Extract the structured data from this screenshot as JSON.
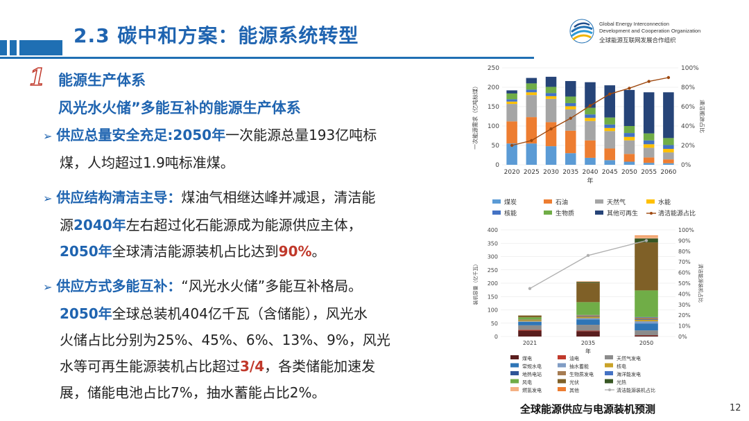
{
  "header": {
    "title": "2.3 碳中和方案：能源系统转型",
    "org_en_1": "Global Energy Interconnection",
    "org_en_2": "Development and Cooperation Organization",
    "org_cn": "全球能源互联网发展合作组织"
  },
  "section": {
    "number": "1",
    "h1": "能源生产体系",
    "h2": "风光水火储”多能互补的能源生产体系"
  },
  "bullets": {
    "b1": {
      "lead": "供应总量安全充足:2050年",
      "t1": "一次能源总量193亿吨标",
      "t2": "煤，人均超过1.9吨标准煤。"
    },
    "b2": {
      "lead": "供应结构清洁主导：",
      "t1": "煤油气相继达峰并减退，清洁能",
      "t2a": "源",
      "t2b": "2040年",
      "t2c": "左右超过化石能源成为能源供应主体，",
      "t3a": "2050年",
      "t3b": "全球清洁能源装机占比达到",
      "t3c": "90%",
      "t3d": "。"
    },
    "b3": {
      "lead": "供应方式多能互补：",
      "t1": "“风光水火储”多能互补格局。",
      "t2a": "2050年",
      "t2b": "全球总装机404亿千瓦（含储能），风光水",
      "t3": "火储占比分别为25%、45%、6%、13%、9%，风光",
      "t4a": "水等可再生能源装机占比超过",
      "t4b": "3/4",
      "t4c": "，各类储能加速发",
      "t5": "展，储能电池占比7%，抽水蓄能占比2%。"
    }
  },
  "caption": "全球能源供应与电源装机预测",
  "page_number": "12",
  "chart_data": [
    {
      "type": "bar",
      "stacked": true,
      "categories": [
        "2020",
        "2025",
        "2030",
        "2035",
        "2040",
        "2045",
        "2050",
        "2055",
        "2060"
      ],
      "xlabel": "年",
      "ylabel": "一次能源需求（亿吨标煤）",
      "ylabel_right": "清洁能源占比",
      "ylim": [
        0,
        250
      ],
      "yticks": [
        "0",
        "50",
        "100",
        "150",
        "200",
        "250"
      ],
      "ylim_right": [
        0,
        100
      ],
      "yticks_right": [
        "0%",
        "20%",
        "40%",
        "60%",
        "80%",
        "100%"
      ],
      "series": [
        {
          "name": "煤炭",
          "color": "#5b9bd5",
          "values": [
            55,
            55,
            48,
            30,
            18,
            12,
            8,
            5,
            4
          ]
        },
        {
          "name": "石油",
          "color": "#ed7d31",
          "values": [
            57,
            68,
            62,
            58,
            45,
            30,
            20,
            14,
            10
          ]
        },
        {
          "name": "天然气",
          "color": "#a5a5a5",
          "values": [
            45,
            57,
            60,
            55,
            50,
            45,
            35,
            25,
            18
          ]
        },
        {
          "name": "水能",
          "color": "#ffc000",
          "values": [
            6,
            7,
            7,
            8,
            8,
            8,
            9,
            9,
            9
          ]
        },
        {
          "name": "核能",
          "color": "#4472c4",
          "values": [
            6,
            7,
            8,
            8,
            9,
            9,
            10,
            10,
            10
          ]
        },
        {
          "name": "生物质",
          "color": "#70ad47",
          "values": [
            15,
            16,
            16,
            17,
            17,
            18,
            18,
            18,
            18
          ]
        },
        {
          "name": "其他可再生",
          "color": "#264478",
          "values": [
            8,
            14,
            26,
            40,
            66,
            83,
            93,
            106,
            118
          ]
        }
      ],
      "line": {
        "name": "清洁能源占比",
        "color": "#9e480e",
        "values": [
          20,
          25,
          37,
          48,
          61,
          73,
          79,
          86,
          90
        ]
      }
    },
    {
      "type": "bar",
      "stacked": true,
      "categories": [
        "2021",
        "2035",
        "2050"
      ],
      "xlabel": "年",
      "ylabel": "装机容量（亿千瓦）",
      "ylabel_right": "清洁能源装机占比",
      "ylim": [
        0,
        400
      ],
      "yticks": [
        "0",
        "50",
        "100",
        "150",
        "200",
        "250",
        "300",
        "350",
        "400"
      ],
      "ylim_right": [
        0,
        100
      ],
      "yticks_right": [
        "0%",
        "10%",
        "20%",
        "30%",
        "40%",
        "50%",
        "60%",
        "70%",
        "80%",
        "90%",
        "100%"
      ],
      "series": [
        {
          "name": "煤电",
          "color": "#5a1e1e",
          "values": [
            22,
            20,
            4
          ]
        },
        {
          "name": "油电",
          "color": "#c0392b",
          "values": [
            3,
            2,
            1
          ]
        },
        {
          "name": "天然气发电",
          "color": "#8c8c8c",
          "values": [
            17,
            22,
            18
          ]
        },
        {
          "name": "常规水电",
          "color": "#2e75b6",
          "values": [
            13,
            20,
            26
          ]
        },
        {
          "name": "抽水蓄能",
          "color": "#7f9cc4",
          "values": [
            2,
            5,
            8
          ]
        },
        {
          "name": "核电",
          "color": "#c9a227",
          "values": [
            4,
            5,
            6
          ]
        },
        {
          "name": "地热电站",
          "color": "#2f5597",
          "values": [
            1,
            2,
            2
          ]
        },
        {
          "name": "生物质发电",
          "color": "#a67c52",
          "values": [
            2,
            4,
            6
          ]
        },
        {
          "name": "海洋能发电",
          "color": "#4472c4",
          "values": [
            0,
            1,
            2
          ]
        },
        {
          "name": "风电",
          "color": "#70ad47",
          "values": [
            8,
            48,
            100
          ]
        },
        {
          "name": "光伏",
          "color": "#7f6027",
          "values": [
            7,
            73,
            180
          ]
        },
        {
          "name": "光热",
          "color": "#375623",
          "values": [
            0,
            3,
            15
          ]
        },
        {
          "name": "燃氢发电",
          "color": "#f4b183",
          "values": [
            0,
            1,
            8
          ]
        },
        {
          "name": "其他",
          "color": "#ed7d31",
          "values": [
            0,
            1,
            3
          ]
        }
      ],
      "line": {
        "name": "清洁能源装机占比",
        "color": "#b0b0b0",
        "values": [
          45,
          76,
          90
        ]
      }
    }
  ]
}
